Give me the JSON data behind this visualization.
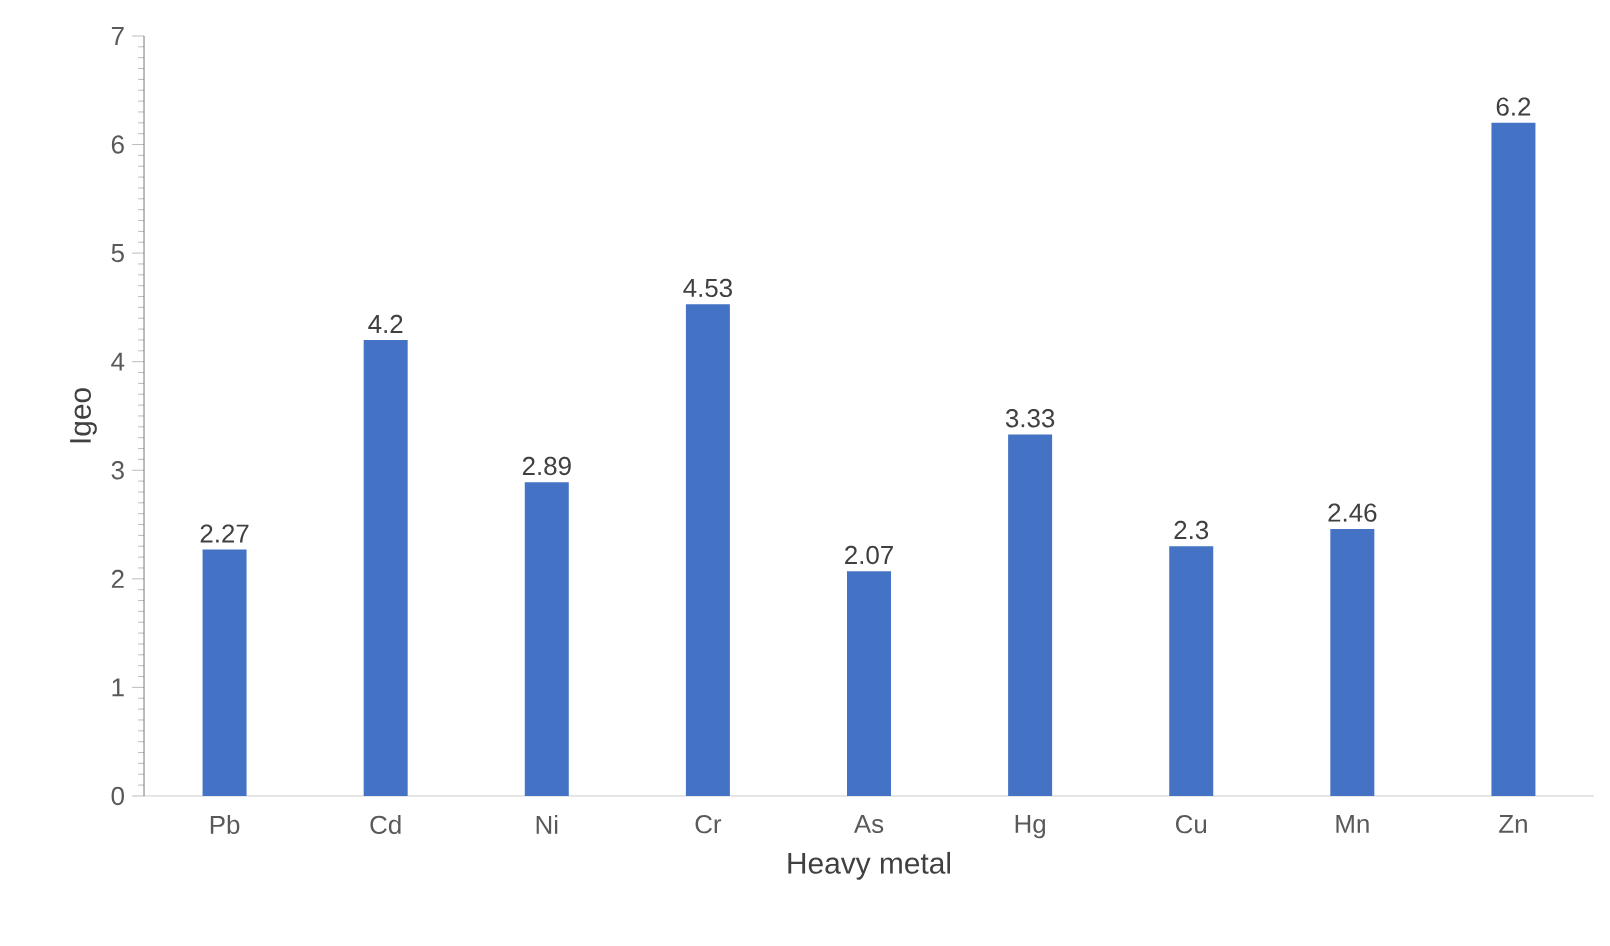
{
  "chart_data": {
    "type": "bar",
    "xlabel": "Heavy metal",
    "ylabel": "Igeo",
    "categories": [
      "Pb",
      "Cd",
      "Ni",
      "Cr",
      "As",
      "Hg",
      "Cu",
      "Mn",
      "Zn"
    ],
    "values": [
      2.27,
      4.2,
      2.89,
      4.53,
      2.07,
      3.33,
      2.3,
      2.46,
      6.2
    ],
    "color": "#4472c4",
    "ylim": [
      0,
      7
    ],
    "yticks": [
      0,
      1,
      2,
      3,
      4,
      5,
      6,
      7
    ],
    "grid": false,
    "data_labels": true
  }
}
